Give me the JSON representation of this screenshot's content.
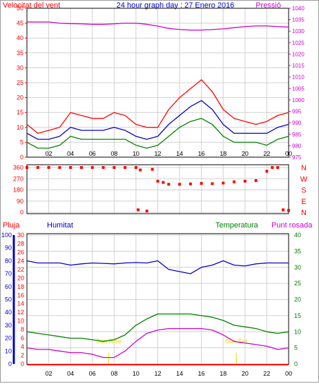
{
  "chart_data": [
    {
      "type": "line",
      "title": "24 hour graph day : 27 Enero 2016",
      "left_axis_label": "Velocitat del vent",
      "right_axis_label": "Pressió",
      "x_ticks": [
        "02",
        "04",
        "06",
        "08",
        "10",
        "12",
        "14",
        "16",
        "18",
        "20",
        "22",
        "00"
      ],
      "y_left_ticks": [
        0,
        5,
        10,
        15,
        20,
        25,
        30,
        35,
        40,
        45,
        50
      ],
      "y_right_ticks": [
        975,
        980,
        985,
        990,
        995,
        1000,
        1005,
        1010,
        1015,
        1020,
        1025,
        1030,
        1035,
        1040
      ],
      "ylim_left": [
        0,
        50
      ],
      "ylim_right": [
        975,
        1040
      ],
      "series": [
        {
          "key": "gust",
          "color": "#ff0000",
          "x": [
            0,
            1,
            2,
            3,
            4,
            5,
            6,
            7,
            8,
            9,
            10,
            11,
            12,
            13,
            14,
            15,
            16,
            17,
            18,
            19,
            20,
            21,
            22,
            23,
            24
          ],
          "values": [
            11,
            8,
            9,
            10,
            15,
            14,
            13,
            13,
            15,
            14,
            11,
            10,
            10,
            16,
            20,
            23,
            26,
            22,
            16,
            13,
            12,
            11,
            12,
            14,
            15
          ]
        },
        {
          "key": "avg",
          "color": "#0000cc",
          "x": [
            0,
            1,
            2,
            3,
            4,
            5,
            6,
            7,
            8,
            9,
            10,
            11,
            12,
            13,
            14,
            15,
            16,
            17,
            18,
            19,
            20,
            21,
            22,
            23,
            24
          ],
          "values": [
            8,
            6,
            6,
            7,
            10,
            9,
            9,
            9,
            10,
            9,
            7,
            6,
            7,
            11,
            14,
            17,
            19,
            16,
            11,
            8,
            8,
            8,
            8,
            10,
            11
          ]
        },
        {
          "key": "min",
          "color": "#008000",
          "x": [
            0,
            1,
            2,
            3,
            4,
            5,
            6,
            7,
            8,
            9,
            10,
            11,
            12,
            13,
            14,
            15,
            16,
            17,
            18,
            19,
            20,
            21,
            22,
            23,
            24
          ],
          "values": [
            5,
            3,
            3,
            4,
            7,
            6,
            6,
            6,
            6,
            6,
            4,
            3,
            4,
            7,
            10,
            12,
            13,
            11,
            7,
            5,
            5,
            5,
            4,
            6,
            7
          ]
        },
        {
          "key": "pressure",
          "color": "#cc00cc",
          "x": [
            0,
            1,
            2,
            3,
            4,
            5,
            6,
            7,
            8,
            9,
            10,
            11,
            12,
            13,
            14,
            15,
            16,
            17,
            18,
            19,
            20,
            21,
            22,
            23,
            24
          ],
          "values": [
            1034,
            1034,
            1034,
            1033.5,
            1033.3,
            1033.2,
            1033,
            1033,
            1033.2,
            1033.5,
            1033.5,
            1033,
            1032.2,
            1031.2,
            1030.7,
            1030.5,
            1030.5,
            1030.7,
            1031,
            1031.5,
            1032,
            1032.3,
            1032.3,
            1032,
            1031.8
          ]
        }
      ]
    },
    {
      "type": "scatter",
      "label": "wind direction",
      "y_ticks": [
        0,
        90,
        180,
        270,
        360
      ],
      "compass_labels": [
        "N",
        "W",
        "S",
        "E",
        "N"
      ],
      "ylim": [
        0,
        360
      ],
      "color": "#ff0000",
      "points": [
        [
          0,
          360
        ],
        [
          1,
          360
        ],
        [
          2,
          360
        ],
        [
          3,
          360
        ],
        [
          4,
          360
        ],
        [
          5,
          360
        ],
        [
          6,
          360
        ],
        [
          7,
          360
        ],
        [
          8,
          360
        ],
        [
          9,
          365
        ],
        [
          10,
          360
        ],
        [
          10.2,
          20
        ],
        [
          10.4,
          340
        ],
        [
          11,
          10
        ],
        [
          11.5,
          345
        ],
        [
          12,
          250
        ],
        [
          12.5,
          240
        ],
        [
          13,
          225
        ],
        [
          14,
          225
        ],
        [
          15,
          228
        ],
        [
          16,
          232
        ],
        [
          17,
          230
        ],
        [
          18,
          235
        ],
        [
          19,
          245
        ],
        [
          20,
          250
        ],
        [
          21,
          255
        ],
        [
          22,
          330
        ],
        [
          22.5,
          360
        ],
        [
          23,
          360
        ],
        [
          23.5,
          20
        ],
        [
          24,
          15
        ]
      ]
    },
    {
      "type": "line",
      "labels": {
        "rain": "Pluja",
        "humidity": "Humitat",
        "temperature": "Temperatura",
        "dewpoint": "Punt rosada"
      },
      "x_ticks": [
        "02",
        "04",
        "06",
        "08",
        "10",
        "12",
        "14",
        "16",
        "18",
        "20",
        "22",
        "00"
      ],
      "y_rain_ticks": [
        0,
        10,
        20,
        30,
        40,
        50,
        60,
        70,
        80,
        90,
        100
      ],
      "y_hum_ticks": [
        0,
        2,
        4,
        6,
        8,
        10,
        12,
        14,
        16,
        18,
        20,
        22,
        24,
        26,
        28,
        30
      ],
      "y_temp_ticks": [
        0,
        5,
        10,
        15,
        20,
        25,
        30,
        35,
        40
      ],
      "ylim_humidity": [
        0,
        30
      ],
      "ylim_temperature": [
        0,
        40
      ],
      "sun_events": [
        {
          "text": "Sun Rise",
          "hour": 7.5
        },
        {
          "text": "Sun Set",
          "hour": 19.2
        }
      ],
      "series": [
        {
          "key": "humidity",
          "color": "#0000cc",
          "x": [
            0,
            1,
            2,
            3,
            4,
            5,
            6,
            7,
            8,
            9,
            10,
            11,
            12,
            13,
            14,
            15,
            16,
            17,
            18,
            19,
            20,
            21,
            22,
            23,
            24
          ],
          "values": [
            24,
            23.5,
            23.5,
            23.5,
            23,
            23.3,
            23.5,
            23.4,
            23.3,
            23.5,
            23.6,
            23.5,
            24,
            22,
            21.5,
            21,
            22.5,
            23,
            24,
            23,
            22.8,
            23.3,
            23.5,
            23.5,
            23.5
          ]
        },
        {
          "key": "temperature",
          "color": "#008000",
          "x": [
            0,
            1,
            2,
            3,
            4,
            5,
            6,
            7,
            8,
            9,
            10,
            11,
            12,
            13,
            14,
            15,
            16,
            17,
            18,
            19,
            20,
            21,
            22,
            23,
            24
          ],
          "values": [
            10,
            9.5,
            9,
            8.5,
            8,
            8,
            7.5,
            7,
            7.5,
            9,
            12,
            14,
            15.5,
            15.5,
            15.5,
            15.5,
            15,
            14.5,
            13.5,
            12,
            11.5,
            11,
            10,
            9.5,
            10
          ]
        },
        {
          "key": "dewpoint",
          "color": "#cc00cc",
          "x": [
            0,
            1,
            2,
            3,
            4,
            5,
            6,
            7,
            8,
            9,
            10,
            11,
            12,
            13,
            14,
            15,
            16,
            17,
            18,
            19,
            20,
            21,
            22,
            23,
            24
          ],
          "values": [
            5,
            4.5,
            4.5,
            4,
            3.5,
            3.5,
            3,
            2,
            2,
            4,
            7,
            9.5,
            10.5,
            11,
            11,
            11,
            11,
            10.5,
            9,
            7,
            6.5,
            6,
            5.5,
            4.5,
            5
          ]
        }
      ]
    }
  ]
}
